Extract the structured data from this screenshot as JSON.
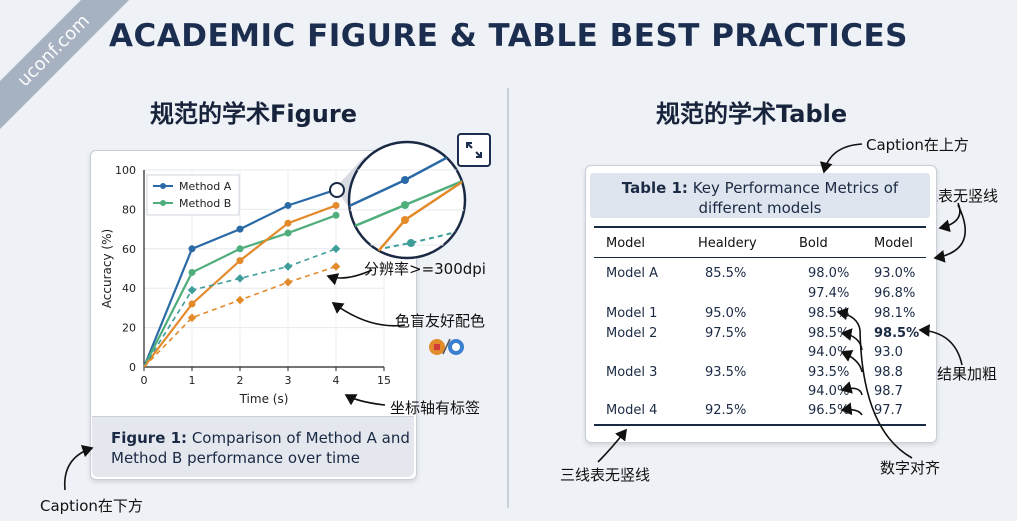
{
  "title": "ACADEMIC FIGURE & TABLE BEST PRACTICES",
  "watermark": "uconf.com",
  "left": {
    "heading": "规范的学术Figure",
    "caption_label": "Figure 1:",
    "caption_line1": "Comparison of Method A and",
    "caption_line2": "Method B performance over time",
    "notes": {
      "resolution": "分辨率>=300dpi",
      "colorblind": "色盲友好配色",
      "axis_labels": "坐标轴有标签",
      "caption_below": "Caption在下方"
    }
  },
  "right": {
    "heading": "规范的学术Table",
    "caption_label": "Table 1:",
    "caption_line1": "Key Performance Metrics of",
    "caption_line2": "different models",
    "headers": [
      "Model",
      "Healdery",
      "Bold",
      "Model"
    ],
    "rows": [
      [
        "Model A",
        "85.5%",
        "98.0%",
        "93.0%"
      ],
      [
        "",
        "",
        "97.4%",
        "96.8%"
      ],
      [
        "Model 1",
        "95.0%",
        "98.5%",
        "98.1%"
      ],
      [
        "Model 2",
        "97.5%",
        "98.5%",
        "98.5%"
      ],
      [
        "",
        "",
        "94.0%",
        "93.0"
      ],
      [
        "Model 3",
        "93.5%",
        "93.5%",
        "98.8"
      ],
      [
        "",
        "",
        "94.0%",
        "98.7"
      ],
      [
        "Model 4",
        "92.5%",
        "96.5%",
        "97.7"
      ]
    ],
    "notes": {
      "caption_above": "Caption在上方",
      "no_vertical_top": "三线表无竖线",
      "best_bold": "最佳结果加粗",
      "number_align": "数字对齐",
      "no_vertical_bottom": "三线表无竖线"
    }
  },
  "chart_data": {
    "type": "line",
    "xlabel": "Time (s)",
    "ylabel": "Accuracy (%)",
    "xlim": [
      0,
      15
    ],
    "ylim": [
      0,
      100
    ],
    "x_ticks": [
      "0",
      "1",
      "2",
      "3",
      "4",
      "15"
    ],
    "y_ticks": [
      "0",
      "20",
      "40",
      "60",
      "80",
      "100"
    ],
    "legend": "top-left",
    "series": [
      {
        "name": "Method A",
        "color": "#2a6aa6",
        "style": "solid",
        "values": [
          0,
          60,
          70,
          82,
          90
        ]
      },
      {
        "name": "Method B",
        "color": "#4fae7c",
        "style": "solid",
        "values": [
          0,
          48,
          60,
          68,
          77
        ]
      },
      {
        "name": "",
        "color": "#e38a2a",
        "style": "solid",
        "values": [
          0,
          32,
          54,
          73,
          82
        ]
      },
      {
        "name": "",
        "color": "#3f9d9a",
        "style": "dashed",
        "values": [
          0,
          39,
          45,
          51,
          60
        ]
      },
      {
        "name": "",
        "color": "#e38a2a",
        "style": "dashed",
        "values": [
          0,
          25,
          34,
          43,
          51
        ]
      }
    ],
    "grid": true
  },
  "colors": {
    "navy": "#1c2e4f",
    "blue": "#2a6aa6",
    "green": "#4fae7c",
    "orange": "#e38a2a",
    "teal": "#3f9d9a"
  }
}
